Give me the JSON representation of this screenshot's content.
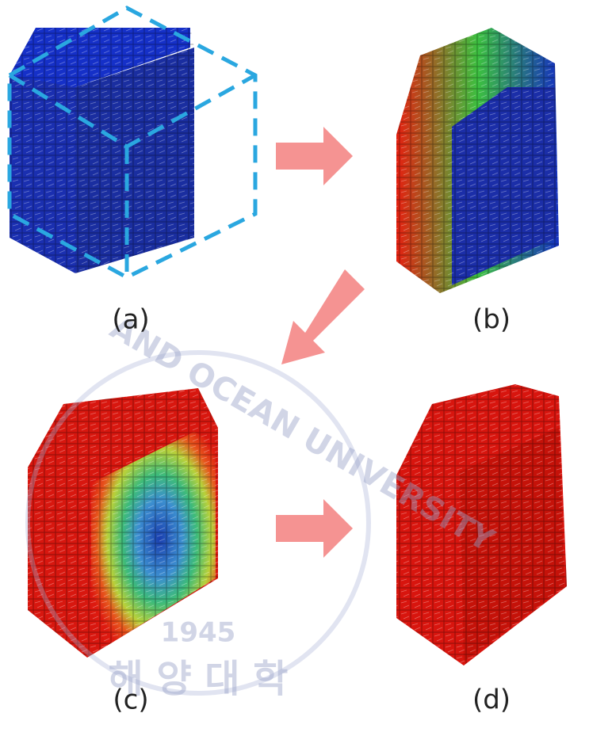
{
  "panels": [
    {
      "label": "(a)"
    },
    {
      "label": "(b)"
    },
    {
      "label": "(c)"
    },
    {
      "label": "(d)"
    }
  ],
  "watermark": {
    "english": "AND OCEAN UNIVERSITY",
    "year": "1945",
    "korean": "해 양 대 학"
  }
}
